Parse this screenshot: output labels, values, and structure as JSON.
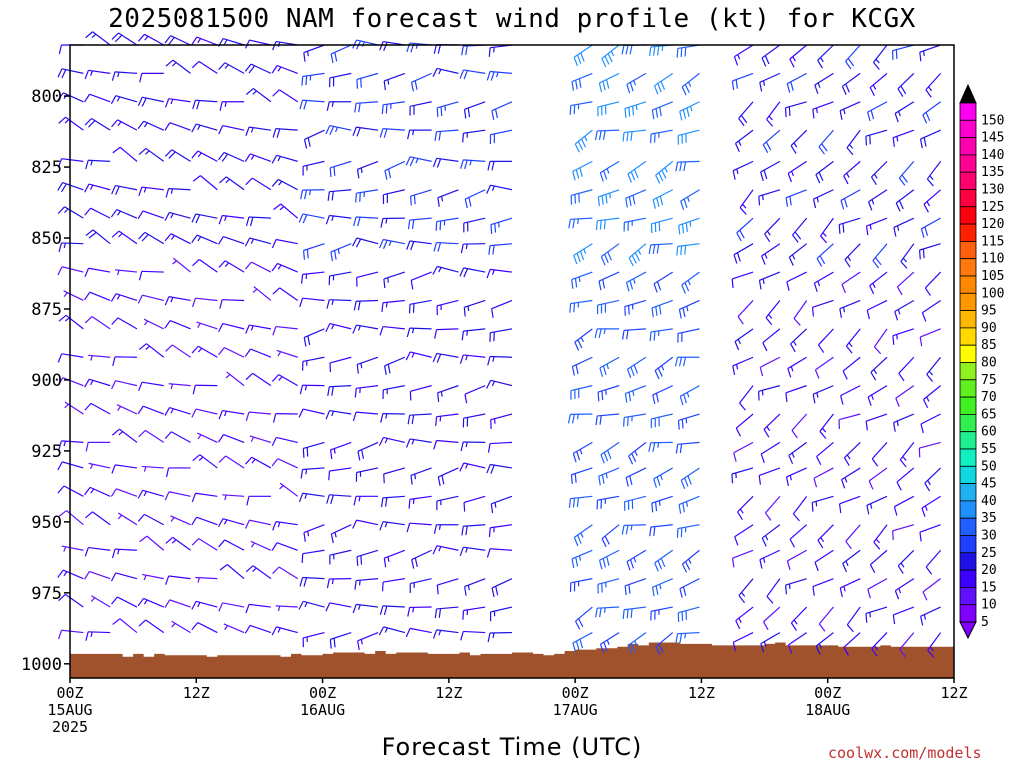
{
  "title": "2025081500 NAM forecast wind profile (kt) for KCGX",
  "footer": {
    "credit": "coolwx.com/models"
  },
  "chart_data": {
    "type": "wind-barb time-height",
    "title": "2025081500 NAM forecast wind profile (kt) for KCGX",
    "xlabel": "Forecast Time (UTC)",
    "ylabel": "",
    "x_range_hours": [
      0,
      84
    ],
    "y_range_hPa": [
      1005,
      782
    ],
    "y_ticks": [
      {
        "value": 800,
        "label": "800"
      },
      {
        "value": 825,
        "label": "825"
      },
      {
        "value": 850,
        "label": "850"
      },
      {
        "value": 875,
        "label": "875"
      },
      {
        "value": 900,
        "label": "900"
      },
      {
        "value": 925,
        "label": "925"
      },
      {
        "value": 950,
        "label": "950"
      },
      {
        "value": 975,
        "label": "975"
      },
      {
        "value": 1000,
        "label": "1000"
      }
    ],
    "x_ticks": [
      {
        "hour": 0,
        "lines": [
          "00Z",
          "15AUG",
          "2025"
        ]
      },
      {
        "hour": 12,
        "lines": [
          "12Z"
        ]
      },
      {
        "hour": 24,
        "lines": [
          "00Z",
          "16AUG"
        ]
      },
      {
        "hour": 36,
        "lines": [
          "12Z"
        ]
      },
      {
        "hour": 48,
        "lines": [
          "00Z",
          "17AUG"
        ]
      },
      {
        "hour": 60,
        "lines": [
          "12Z"
        ]
      },
      {
        "hour": 72,
        "lines": [
          "00Z",
          "18AUG"
        ]
      },
      {
        "hour": 84,
        "lines": [
          "12Z"
        ]
      }
    ],
    "surface_pressure_hPa": [
      [
        0,
        996.5
      ],
      [
        3,
        996.5
      ],
      [
        5,
        997.5
      ],
      [
        6,
        996.5
      ],
      [
        7,
        997.5
      ],
      [
        8,
        996.5
      ],
      [
        9,
        997
      ],
      [
        12,
        997
      ],
      [
        13,
        997.5
      ],
      [
        14,
        997
      ],
      [
        20,
        997.5
      ],
      [
        21,
        996.5
      ],
      [
        22,
        997
      ],
      [
        24,
        996.5
      ],
      [
        25,
        996
      ],
      [
        28,
        996.5
      ],
      [
        29,
        995.5
      ],
      [
        30,
        996.5
      ],
      [
        31,
        996
      ],
      [
        33,
        996
      ],
      [
        34,
        996.5
      ],
      [
        36,
        996.5
      ],
      [
        37,
        996
      ],
      [
        38,
        997
      ],
      [
        39,
        996.5
      ],
      [
        41,
        996.5
      ],
      [
        42,
        996
      ],
      [
        44,
        996.5
      ],
      [
        45,
        997
      ],
      [
        46,
        996.5
      ],
      [
        47,
        995.5
      ],
      [
        48,
        995
      ],
      [
        50,
        994.5
      ],
      [
        52,
        994
      ],
      [
        53,
        993
      ],
      [
        54,
        993.5
      ],
      [
        55,
        992.5
      ],
      [
        57,
        992.5
      ],
      [
        58,
        993
      ],
      [
        60,
        993
      ],
      [
        61,
        993.5
      ],
      [
        66,
        993
      ],
      [
        67,
        992.5
      ],
      [
        68,
        993.5
      ],
      [
        72,
        993.5
      ],
      [
        73,
        994
      ],
      [
        76,
        994
      ],
      [
        77,
        993.5
      ],
      [
        78,
        994
      ],
      [
        84,
        994
      ]
    ],
    "speed_colorbar": {
      "units": "kt",
      "values": [
        5,
        10,
        15,
        20,
        25,
        30,
        35,
        40,
        45,
        50,
        55,
        60,
        65,
        70,
        75,
        80,
        85,
        90,
        95,
        100,
        105,
        110,
        115,
        120,
        125,
        130,
        135,
        140,
        145,
        150
      ],
      "colors": [
        "#8000ff",
        "#6010ff",
        "#3c00ff",
        "#2010e8",
        "#2040ff",
        "#2060ff",
        "#2090ff",
        "#20b0f0",
        "#10d8e0",
        "#10f0c0",
        "#20f090",
        "#30f050",
        "#40f020",
        "#60f020",
        "#90f020",
        "#ffff00",
        "#ffd800",
        "#ffb800",
        "#ff9800",
        "#ff8800",
        "#ff7810",
        "#ff6010",
        "#ff2000",
        "#ff0010",
        "#ff0040",
        "#ff0070",
        "#ff0090",
        "#ff00b0",
        "#ff00d0",
        "#ff00f0"
      ]
    },
    "wind_field": {
      "columns": 33,
      "levels_hPa": [
        782,
        792,
        802,
        812,
        823,
        833,
        843,
        852,
        862,
        872,
        882,
        892,
        902,
        912,
        922,
        931,
        941,
        951,
        960,
        970,
        980,
        989,
        999
      ],
      "phases": [
        {
          "from_hour": 0,
          "to_hour": 24,
          "dir_deg": 290,
          "speed_kt": 10
        },
        {
          "from_hour": 24,
          "to_hour": 42,
          "dir_deg": 265,
          "speed_kt": 15
        },
        {
          "from_hour": 48,
          "to_hour": 62,
          "dir_deg": 250,
          "speed_kt": 25
        },
        {
          "from_hour": 64,
          "to_hour": 84,
          "dir_deg": 235,
          "speed_kt": 12
        }
      ]
    }
  }
}
